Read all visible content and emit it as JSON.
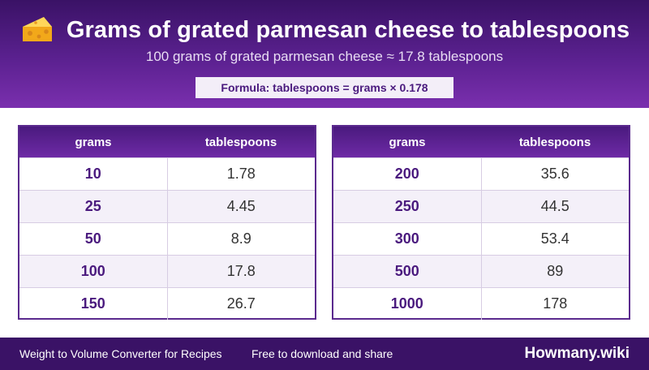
{
  "header": {
    "icon": "cheese-icon",
    "title": "Grams of grated parmesan cheese to tablespoons",
    "subtitle": "100 grams of grated parmesan cheese ≈ 17.8 tablespoons",
    "formula": "Formula: tablespoons = grams × 0.178"
  },
  "tables": {
    "headers": {
      "grams": "grams",
      "tablespoons": "tablespoons"
    },
    "left": [
      {
        "grams": "10",
        "tablespoons": "1.78"
      },
      {
        "grams": "25",
        "tablespoons": "4.45"
      },
      {
        "grams": "50",
        "tablespoons": "8.9"
      },
      {
        "grams": "100",
        "tablespoons": "17.8"
      },
      {
        "grams": "150",
        "tablespoons": "26.7"
      }
    ],
    "right": [
      {
        "grams": "200",
        "tablespoons": "35.6"
      },
      {
        "grams": "250",
        "tablespoons": "44.5"
      },
      {
        "grams": "300",
        "tablespoons": "53.4"
      },
      {
        "grams": "500",
        "tablespoons": "89"
      },
      {
        "grams": "1000",
        "tablespoons": "178"
      }
    ]
  },
  "footer": {
    "left": "Weight to Volume Converter for Recipes",
    "middle": "Free to download and share",
    "brand": "Howmany.wiki"
  },
  "colors": {
    "header_dark": "#3a1266",
    "header_light": "#7a2fae",
    "accent": "#4a1a7e"
  }
}
